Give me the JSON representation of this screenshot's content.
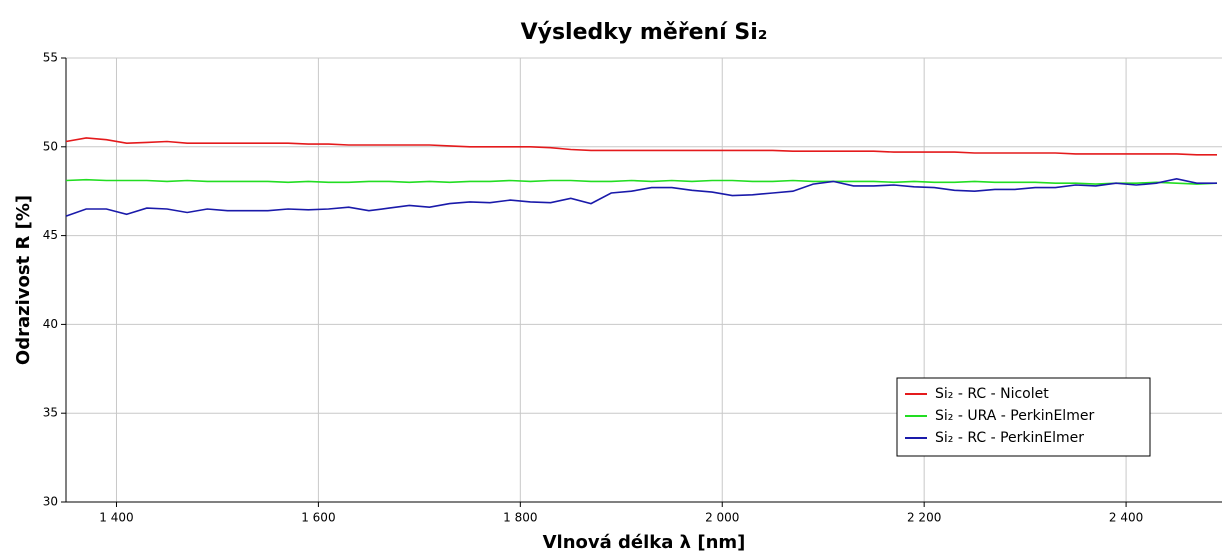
{
  "chart_data": {
    "type": "line",
    "title": "Výsledky měření Si₂",
    "x_label": "Vlnová délka λ [nm]",
    "y_label": "Odrazivost R [%]",
    "xlim": [
      1350,
      2495
    ],
    "ylim": [
      30,
      55
    ],
    "xticks": [
      {
        "value": 1400,
        "label": "1 400"
      },
      {
        "value": 1600,
        "label": "1 600"
      },
      {
        "value": 1800,
        "label": "1 800"
      },
      {
        "value": 2000,
        "label": "2 000"
      },
      {
        "value": 2200,
        "label": "2 200"
      },
      {
        "value": 2400,
        "label": "2 400"
      }
    ],
    "yticks": [
      30,
      35,
      40,
      45,
      50,
      55
    ],
    "grid": true,
    "legend": "lower right",
    "x": [
      1350,
      1370,
      1390,
      1410,
      1430,
      1450,
      1470,
      1490,
      1510,
      1530,
      1550,
      1570,
      1590,
      1610,
      1630,
      1650,
      1670,
      1690,
      1710,
      1730,
      1750,
      1770,
      1790,
      1810,
      1830,
      1850,
      1870,
      1890,
      1910,
      1930,
      1950,
      1970,
      1990,
      2010,
      2030,
      2050,
      2070,
      2090,
      2110,
      2130,
      2150,
      2170,
      2190,
      2210,
      2230,
      2250,
      2270,
      2290,
      2310,
      2330,
      2350,
      2370,
      2390,
      2410,
      2430,
      2450,
      2470,
      2490
    ],
    "series": [
      {
        "name": "Si₂ - RC - Nicolet",
        "color": "#e41a1c",
        "values": [
          50.3,
          50.5,
          50.4,
          50.2,
          50.25,
          50.3,
          50.2,
          50.2,
          50.2,
          50.2,
          50.2,
          50.2,
          50.15,
          50.15,
          50.1,
          50.1,
          50.1,
          50.1,
          50.1,
          50.05,
          50.0,
          50.0,
          50.0,
          50.0,
          49.95,
          49.85,
          49.8,
          49.8,
          49.8,
          49.8,
          49.8,
          49.8,
          49.8,
          49.8,
          49.8,
          49.8,
          49.75,
          49.75,
          49.75,
          49.75,
          49.75,
          49.7,
          49.7,
          49.7,
          49.7,
          49.65,
          49.65,
          49.65,
          49.65,
          49.65,
          49.6,
          49.6,
          49.6,
          49.6,
          49.6,
          49.6,
          49.55,
          49.55
        ]
      },
      {
        "name": "Si₂ - URA - PerkinElmer",
        "color": "#22dd22",
        "values": [
          48.1,
          48.15,
          48.1,
          48.1,
          48.1,
          48.05,
          48.1,
          48.05,
          48.05,
          48.05,
          48.05,
          48.0,
          48.05,
          48.0,
          48.0,
          48.05,
          48.05,
          48.0,
          48.05,
          48.0,
          48.05,
          48.05,
          48.1,
          48.05,
          48.1,
          48.1,
          48.05,
          48.05,
          48.1,
          48.05,
          48.1,
          48.05,
          48.1,
          48.1,
          48.05,
          48.05,
          48.1,
          48.05,
          48.05,
          48.05,
          48.05,
          48.0,
          48.05,
          48.0,
          48.0,
          48.05,
          48.0,
          48.0,
          48.0,
          47.95,
          47.95,
          47.9,
          47.95,
          47.95,
          48.0,
          47.95,
          47.9,
          47.95
        ]
      },
      {
        "name": "Si₂ - RC - PerkinElmer",
        "color": "#1a1aaa",
        "values": [
          46.1,
          46.5,
          46.5,
          46.2,
          46.55,
          46.5,
          46.3,
          46.5,
          46.4,
          46.4,
          46.4,
          46.5,
          46.45,
          46.5,
          46.6,
          46.4,
          46.55,
          46.7,
          46.6,
          46.8,
          46.9,
          46.85,
          47.0,
          46.9,
          46.85,
          47.1,
          46.8,
          47.4,
          47.5,
          47.7,
          47.7,
          47.55,
          47.45,
          47.25,
          47.3,
          47.4,
          47.5,
          47.9,
          48.05,
          47.8,
          47.8,
          47.85,
          47.75,
          47.7,
          47.55,
          47.5,
          47.6,
          47.6,
          47.7,
          47.7,
          47.85,
          47.8,
          47.95,
          47.85,
          47.95,
          48.2,
          47.95,
          47.95
        ]
      }
    ]
  }
}
